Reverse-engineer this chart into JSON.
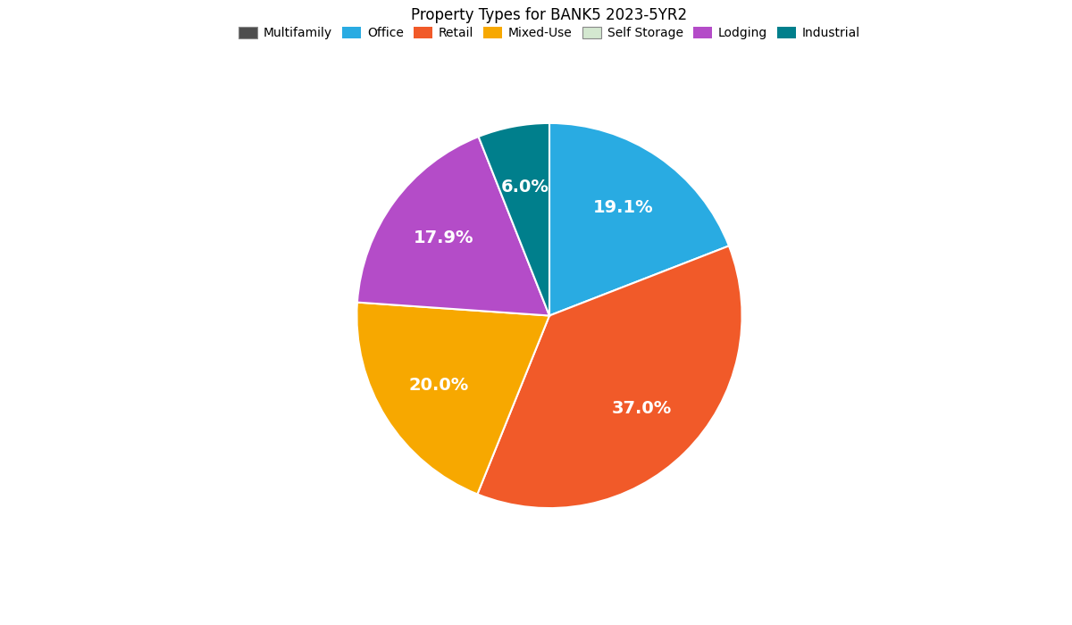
{
  "title": "Property Types for BANK5 2023-5YR2",
  "labels": [
    "Multifamily",
    "Office",
    "Retail",
    "Mixed-Use",
    "Self Storage",
    "Lodging",
    "Industrial"
  ],
  "values": [
    0.0,
    19.1,
    37.0,
    20.0,
    0.0,
    17.9,
    6.0
  ],
  "colors": [
    "#4d4d4d",
    "#29abe2",
    "#f15a29",
    "#f7a800",
    "#a8c8a0",
    "#b44cc8",
    "#007f8c"
  ],
  "autopct_fontsize": 14,
  "title_fontsize": 12,
  "legend_fontsize": 10,
  "figsize": [
    12,
    7
  ],
  "dpi": 100,
  "startangle": 90
}
